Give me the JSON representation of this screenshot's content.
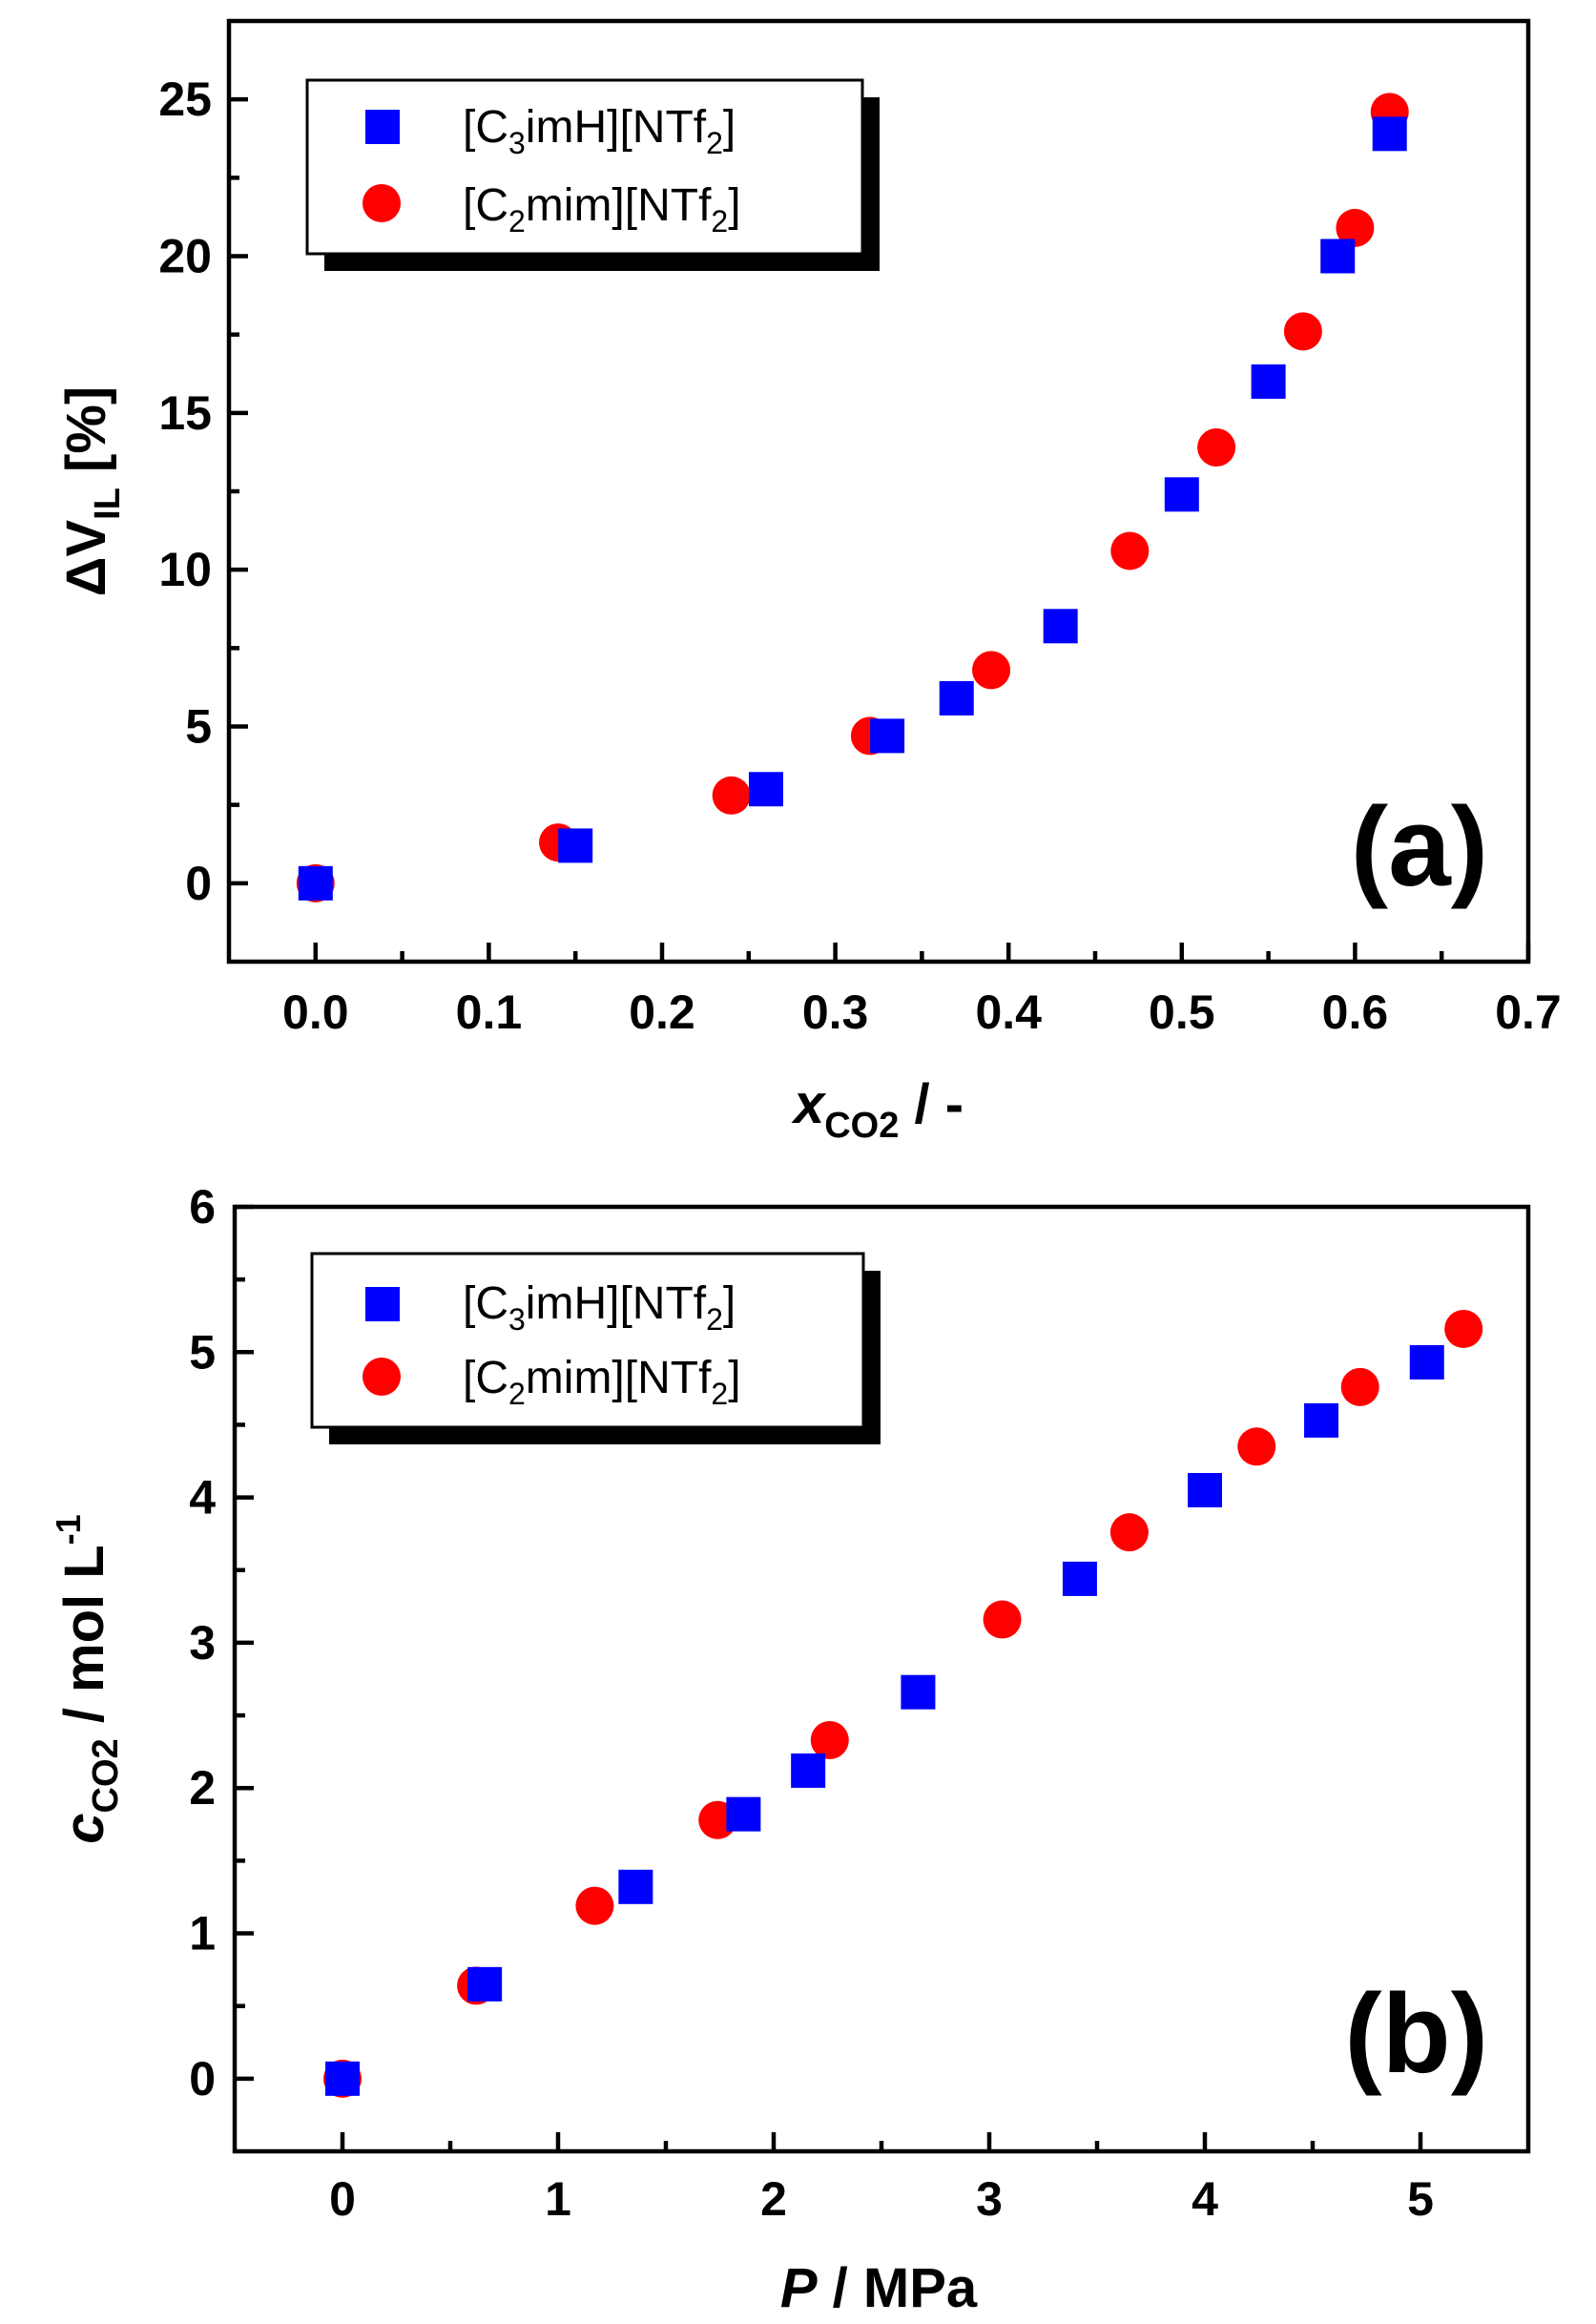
{
  "chart_data": [
    {
      "type": "scatter",
      "panel_label": "(a)",
      "title": "",
      "xlabel": {
        "main": "x",
        "sub": "CO2",
        "rest": " / -"
      },
      "ylabel": {
        "main": "ΔV",
        "sub": "IL",
        "rest": " [%]"
      },
      "xlim": [
        -0.05,
        0.7
      ],
      "ylim": [
        -2.5,
        27.5
      ],
      "xticks": [
        "0.0",
        "0.1",
        "0.2",
        "0.3",
        "0.4",
        "0.5",
        "0.6",
        "0.7"
      ],
      "yticks": [
        "0",
        "5",
        "10",
        "15",
        "20",
        "25"
      ],
      "legend_position": "top-left",
      "series": [
        {
          "name": "[C3imH][NTf2]",
          "legend": {
            "pre": "[C",
            "sub1": "3",
            "mid": "imH][NTf",
            "sub2": "2",
            "post": "]"
          },
          "marker": "square",
          "color": "#0000ff",
          "x": [
            0.0,
            0.15,
            0.26,
            0.33,
            0.37,
            0.43,
            0.5,
            0.55,
            0.59,
            0.62
          ],
          "y": [
            0.0,
            1.2,
            3.0,
            4.7,
            5.9,
            8.2,
            12.4,
            16.0,
            20.0,
            23.9
          ]
        },
        {
          "name": "[C2mim][NTf2]",
          "legend": {
            "pre": "[C",
            "sub1": "2",
            "mid": "mim][NTf",
            "sub2": "2",
            "post": "]"
          },
          "marker": "circle",
          "color": "#ff0000",
          "x": [
            0.0,
            0.14,
            0.24,
            0.32,
            0.39,
            0.47,
            0.52,
            0.57,
            0.6,
            0.62
          ],
          "y": [
            0.0,
            1.3,
            2.8,
            4.7,
            6.8,
            10.6,
            13.9,
            17.6,
            20.9,
            24.6
          ]
        }
      ]
    },
    {
      "type": "scatter",
      "panel_label": "(b)",
      "title": "",
      "xlabel": {
        "main": "P",
        "rest": " / MPa"
      },
      "ylabel": {
        "main": "c",
        "sub": "CO2",
        "rest": " / mol L",
        "sup": "-1"
      },
      "xlim": [
        -0.5,
        5.5
      ],
      "ylim": [
        -0.5,
        6.0
      ],
      "xticks": [
        "0",
        "1",
        "2",
        "3",
        "4",
        "5"
      ],
      "yticks": [
        "0",
        "1",
        "2",
        "3",
        "4",
        "5",
        "6"
      ],
      "legend_position": "top-left",
      "series": [
        {
          "name": "[C3imH][NTf2]",
          "legend": {
            "pre": "[C",
            "sub1": "3",
            "mid": "imH][NTf",
            "sub2": "2",
            "post": "]"
          },
          "marker": "square",
          "color": "#0000ff",
          "x": [
            0.0,
            0.66,
            1.36,
            1.86,
            2.16,
            2.67,
            3.42,
            4.0,
            4.54,
            5.03
          ],
          "y": [
            0.0,
            0.65,
            1.32,
            1.82,
            2.12,
            2.66,
            3.44,
            4.05,
            4.53,
            4.93
          ]
        },
        {
          "name": "[C2mim][NTf2]",
          "legend": {
            "pre": "[C",
            "sub1": "2",
            "mid": "mim][NTf",
            "sub2": "2",
            "post": "]"
          },
          "marker": "circle",
          "color": "#ff0000",
          "x": [
            0.0,
            0.62,
            1.17,
            1.74,
            2.26,
            3.06,
            3.65,
            4.24,
            4.72,
            5.2
          ],
          "y": [
            0.0,
            0.64,
            1.19,
            1.78,
            2.33,
            3.16,
            3.76,
            4.35,
            4.76,
            5.16
          ]
        }
      ]
    }
  ]
}
